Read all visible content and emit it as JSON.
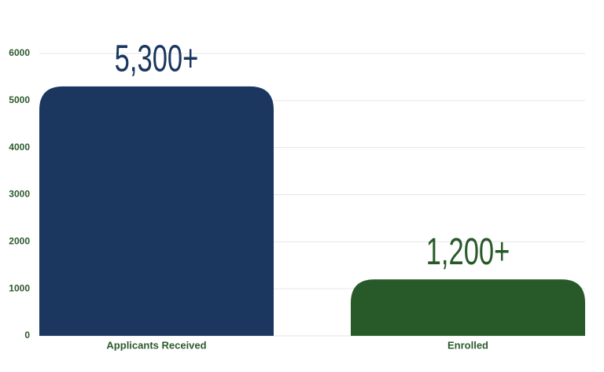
{
  "chart_data": {
    "type": "bar",
    "categories": [
      "Applicants Received",
      "Enrolled"
    ],
    "values": [
      5300,
      1200
    ],
    "value_labels": [
      "5,300+",
      "1,200+"
    ],
    "colors": [
      "#1b365f",
      "#285a29"
    ],
    "ylim": [
      0,
      6000
    ],
    "yticks": [
      0,
      1000,
      2000,
      3000,
      4000,
      5000,
      6000
    ],
    "grid": true
  }
}
